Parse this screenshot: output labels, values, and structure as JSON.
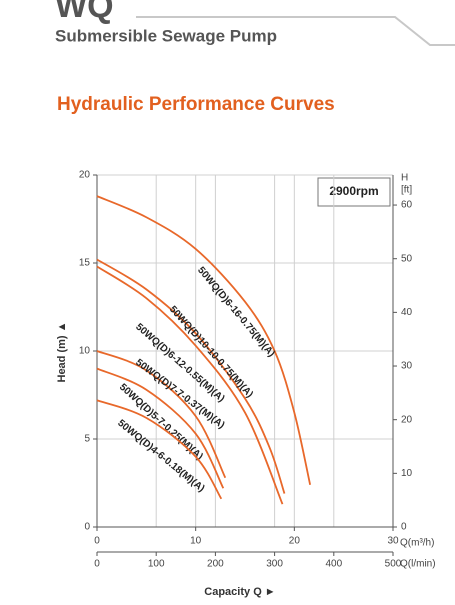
{
  "header": {
    "brand": "WQ",
    "product": "Submersible Sewage Pump"
  },
  "chart_data": {
    "type": "line",
    "title": "Hydraulic Performance Curves",
    "annotation": "2900rpm",
    "y_label": "Head (m) ▲",
    "y2_label": "H",
    "y2_unit": "[ft]",
    "x_label": "Capacity Q ►",
    "x_unit": "Q(m³/h)",
    "x2_unit": "Q(l/min)",
    "xlim": [
      0,
      30
    ],
    "xticks": [
      0,
      10,
      20,
      30
    ],
    "x2lim": [
      0,
      500
    ],
    "x2ticks": [
      0,
      100,
      200,
      300,
      400,
      500
    ],
    "ylim": [
      0,
      20
    ],
    "yticks": [
      0,
      5,
      10,
      15,
      20
    ],
    "y2lim": [
      0,
      65.6
    ],
    "y2ticks": [
      0,
      10,
      20,
      30,
      40,
      50,
      60
    ],
    "grid": true,
    "series": [
      {
        "name": "50WQ(D)6-16-0.75(M)(A)",
        "color": "#e8682a",
        "x": [
          0,
          5,
          10,
          15,
          18,
          20,
          21.6
        ],
        "values": [
          18.8,
          17.6,
          15.8,
          12.8,
          10,
          6.5,
          2.4
        ]
      },
      {
        "name": "50WQ(D)10-10-0.75(M)(A)",
        "color": "#e8682a",
        "x": [
          0,
          5,
          10,
          15,
          17.5,
          19
        ],
        "values": [
          15.2,
          13.5,
          11,
          7.3,
          4.5,
          1.9
        ]
      },
      {
        "name": "50WQ(D)6-12-0.55(M)(A)",
        "color": "#e8682a",
        "x": [
          0,
          5,
          10,
          15,
          18.8
        ],
        "values": [
          14.8,
          13,
          10.3,
          6.5,
          1.3
        ]
      },
      {
        "name": "50WQ(D)7-7-0.37(M)(A)",
        "color": "#e8682a",
        "x": [
          0,
          5,
          10,
          13
        ],
        "values": [
          10,
          8.9,
          6.3,
          2.8
        ]
      },
      {
        "name": "50WQ(D)5-7-0.25(M)(A)",
        "color": "#e8682a",
        "x": [
          0,
          5,
          10,
          12.8
        ],
        "values": [
          9,
          7.8,
          5.3,
          2.2
        ]
      },
      {
        "name": "50WQ(D)4-6-0.18(M)(A)",
        "color": "#e8682a",
        "x": [
          0,
          5,
          10,
          12.6
        ],
        "values": [
          7.2,
          6.2,
          4,
          1.6
        ]
      }
    ]
  }
}
